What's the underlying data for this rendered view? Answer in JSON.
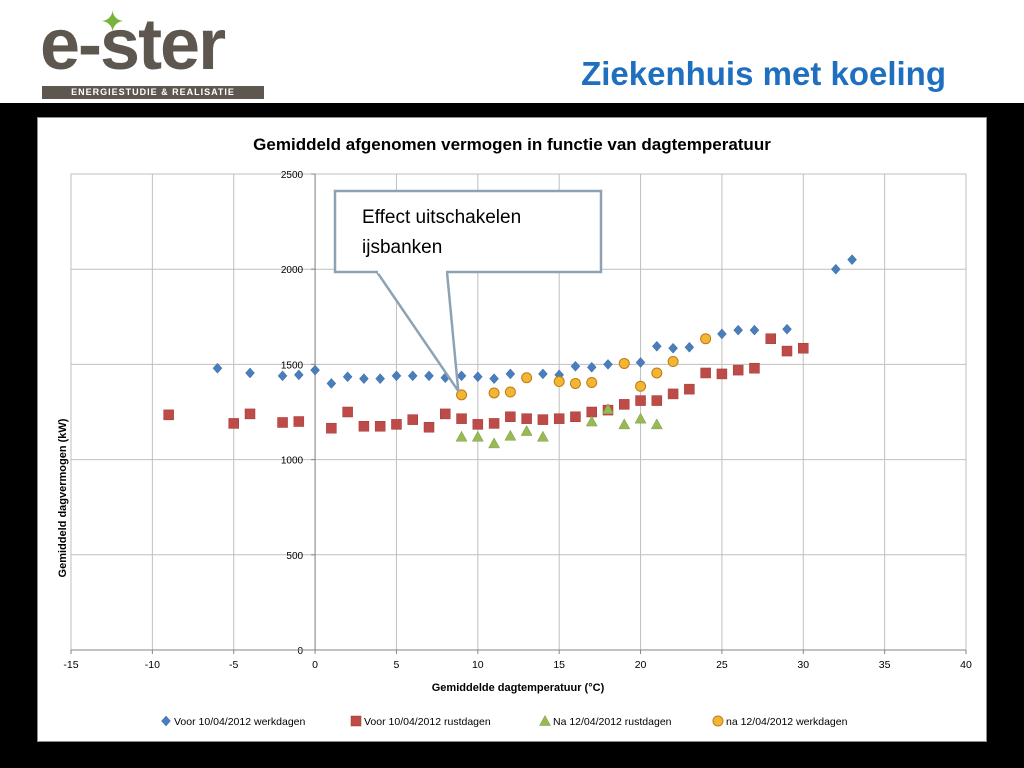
{
  "header": {
    "logo_text": "e-ster",
    "logo_tagline": "ENERGIESTUDIE & REALISATIE",
    "slide_title": "Ziekenhuis met koeling"
  },
  "chart_data": {
    "type": "scatter",
    "title": "Gemiddeld afgenomen vermogen  in functie  van dagtemperatuur",
    "xlabel": "Gemiddelde dagtemperatuur (°C)",
    "ylabel": "Gemiddeld dagvermogen (kW)",
    "xlim": [
      -15,
      40
    ],
    "ylim": [
      0,
      2500
    ],
    "xticks": [
      -15,
      -10,
      -5,
      0,
      5,
      10,
      15,
      20,
      25,
      30,
      35,
      40
    ],
    "yticks": [
      0,
      500,
      1000,
      1500,
      2000,
      2500
    ],
    "grid": true,
    "legend_position": "bottom",
    "annotation": {
      "lines": [
        "Effect uitschakelen",
        "ijsbanken"
      ],
      "points_to": {
        "x": 8.8,
        "y": 1360
      }
    },
    "series": [
      {
        "name": "Voor 10/04/2012 werkdagen",
        "marker": "diamond",
        "color": "#4a7ebb",
        "points": [
          [
            -6,
            1480
          ],
          [
            -4,
            1455
          ],
          [
            -2,
            1440
          ],
          [
            -1,
            1445
          ],
          [
            0,
            1470
          ],
          [
            1,
            1400
          ],
          [
            2,
            1435
          ],
          [
            3,
            1425
          ],
          [
            4,
            1425
          ],
          [
            5,
            1440
          ],
          [
            6,
            1440
          ],
          [
            7,
            1440
          ],
          [
            8,
            1430
          ],
          [
            9,
            1440
          ],
          [
            10,
            1435
          ],
          [
            11,
            1425
          ],
          [
            12,
            1450
          ],
          [
            13,
            1430
          ],
          [
            14,
            1450
          ],
          [
            15,
            1445
          ],
          [
            16,
            1490
          ],
          [
            17,
            1485
          ],
          [
            18,
            1500
          ],
          [
            19,
            1505
          ],
          [
            20,
            1510
          ],
          [
            21,
            1595
          ],
          [
            22,
            1585
          ],
          [
            23,
            1590
          ],
          [
            25,
            1660
          ],
          [
            26,
            1680
          ],
          [
            27,
            1680
          ],
          [
            29,
            1685
          ],
          [
            32,
            2000
          ],
          [
            33,
            2050
          ]
        ]
      },
      {
        "name": "Voor 10/04/2012 rustdagen",
        "marker": "square",
        "color": "#be4b48",
        "points": [
          [
            -9,
            1235
          ],
          [
            -5,
            1190
          ],
          [
            -4,
            1240
          ],
          [
            -2,
            1195
          ],
          [
            -1,
            1200
          ],
          [
            1,
            1165
          ],
          [
            2,
            1250
          ],
          [
            3,
            1175
          ],
          [
            4,
            1175
          ],
          [
            5,
            1185
          ],
          [
            6,
            1210
          ],
          [
            7,
            1170
          ],
          [
            8,
            1240
          ],
          [
            9,
            1215
          ],
          [
            10,
            1185
          ],
          [
            11,
            1190
          ],
          [
            12,
            1225
          ],
          [
            13,
            1215
          ],
          [
            14,
            1210
          ],
          [
            15,
            1215
          ],
          [
            16,
            1225
          ],
          [
            17,
            1250
          ],
          [
            18,
            1260
          ],
          [
            19,
            1290
          ],
          [
            20,
            1310
          ],
          [
            21,
            1310
          ],
          [
            22,
            1345
          ],
          [
            23,
            1370
          ],
          [
            24,
            1455
          ],
          [
            25,
            1450
          ],
          [
            26,
            1470
          ],
          [
            27,
            1480
          ],
          [
            28,
            1635
          ],
          [
            29,
            1570
          ],
          [
            30,
            1585
          ]
        ]
      },
      {
        "name": "Na 12/04/2012 rustdagen",
        "marker": "triangle",
        "color": "#98b954",
        "points": [
          [
            9,
            1120
          ],
          [
            10,
            1120
          ],
          [
            11,
            1085
          ],
          [
            12,
            1125
          ],
          [
            13,
            1150
          ],
          [
            14,
            1120
          ],
          [
            17,
            1200
          ],
          [
            18,
            1265
          ],
          [
            19,
            1185
          ],
          [
            20,
            1215
          ],
          [
            21,
            1185
          ]
        ]
      },
      {
        "name": "na 12/04/2012 werkdagen",
        "marker": "circle",
        "color": "#f2b632",
        "points": [
          [
            9,
            1340
          ],
          [
            11,
            1350
          ],
          [
            12,
            1355
          ],
          [
            13,
            1430
          ],
          [
            15,
            1410
          ],
          [
            16,
            1400
          ],
          [
            17,
            1405
          ],
          [
            19,
            1505
          ],
          [
            20,
            1385
          ],
          [
            21,
            1455
          ],
          [
            22,
            1515
          ],
          [
            24,
            1635
          ]
        ]
      }
    ]
  }
}
